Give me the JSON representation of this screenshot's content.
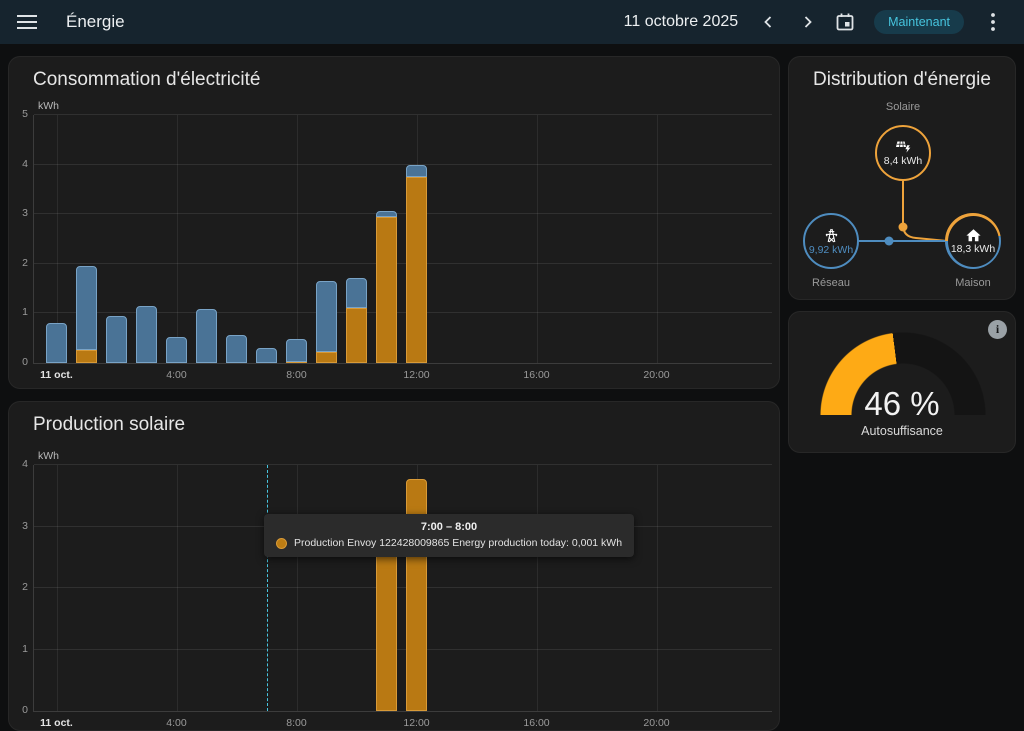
{
  "header": {
    "title": "Énergie",
    "date": "11 octobre 2025",
    "now_button": "Maintenant"
  },
  "cards": {
    "consumption": {
      "title": "Consommation d'électricité"
    },
    "production": {
      "title": "Production solaire",
      "tooltip": {
        "title": "7:00 – 8:00",
        "text": "Production Envoy 122428009865 Energy production today: 0,001 kWh"
      }
    },
    "distribution": {
      "title": "Distribution d'énergie",
      "solar": {
        "label": "Solaire",
        "value": "8,4 kWh"
      },
      "grid": {
        "label": "Réseau",
        "value": "9,92 kWh"
      },
      "home": {
        "label": "Maison",
        "value": "18,3 kWh"
      },
      "home_ring_solar_percent": 47
    },
    "gauge": {
      "value_text": "46 %",
      "percent": 46,
      "label": "Autosuffisance",
      "info_glyph": "i"
    }
  },
  "colors": {
    "solar": "#eea33b",
    "grid_blue": "#4e8cbf",
    "solar_bar_fill": "#b97913",
    "solar_bar_stroke": "#d89a38",
    "grid_bar_fill": "#4a7396",
    "grid_bar_stroke": "#79a3c6",
    "gauge_orange": "#feaa15",
    "gauge_track": "#141414",
    "cursor_teal": "#47c4de",
    "now_pill_text": "#46c4de"
  },
  "chart_data": [
    {
      "id": "consumption",
      "type": "bar",
      "stacked": true,
      "title": "Consommation d'électricité",
      "xlabel": "",
      "ylabel": "kWh",
      "ylim": [
        0,
        5
      ],
      "x_axis_range_hours": [
        -0.75,
        23.85
      ],
      "grid": true,
      "categories_hours": [
        0,
        1,
        2,
        3,
        4,
        5,
        6,
        7,
        8,
        9,
        10,
        11,
        12
      ],
      "series": [
        {
          "key": "solar",
          "values": [
            0,
            0.27,
            0,
            0,
            0,
            0,
            0,
            0,
            0.03,
            0.22,
            1.1,
            2.95,
            3.75
          ]
        },
        {
          "key": "grid",
          "values": [
            0.8,
            1.68,
            0.95,
            1.15,
            0.52,
            1.08,
            0.57,
            0.3,
            0.45,
            1.43,
            0.62,
            0.12,
            0.25
          ]
        }
      ],
      "xticks": [
        {
          "h": 0,
          "label": "11 oct.",
          "bold": true
        },
        {
          "h": 4,
          "label": "4:00"
        },
        {
          "h": 8,
          "label": "8:00"
        },
        {
          "h": 12,
          "label": "12:00"
        },
        {
          "h": 16,
          "label": "16:00"
        },
        {
          "h": 20,
          "label": "20:00"
        }
      ]
    },
    {
      "id": "production",
      "type": "bar",
      "stacked": false,
      "title": "Production solaire",
      "xlabel": "",
      "ylabel": "kWh",
      "ylim": [
        0,
        4
      ],
      "x_axis_range_hours": [
        -0.75,
        23.85
      ],
      "grid": true,
      "series": [
        {
          "key": "solar",
          "name": "Production Envoy 122428009865",
          "points": [
            {
              "h": 7,
              "v": 0.001
            },
            {
              "h": 11,
              "v": 3.05
            },
            {
              "h": 12,
              "v": 3.77
            }
          ]
        }
      ],
      "xticks": [
        {
          "h": 0,
          "label": "11 oct.",
          "bold": true
        },
        {
          "h": 4,
          "label": "4:00"
        },
        {
          "h": 8,
          "label": "8:00"
        },
        {
          "h": 12,
          "label": "12:00"
        },
        {
          "h": 16,
          "label": "16:00"
        },
        {
          "h": 20,
          "label": "20:00"
        }
      ],
      "cursor_hour": 7
    }
  ]
}
